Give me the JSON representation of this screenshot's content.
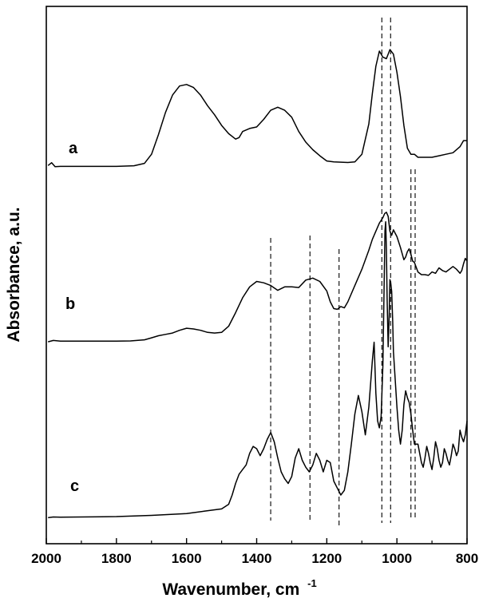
{
  "chart_data": {
    "type": "line",
    "title": "",
    "xlabel": "Wavenumber, cm",
    "xlabel_superscript": "-1",
    "ylabel": "Absorbance, a.u.",
    "xlim": [
      2000,
      800
    ],
    "x_reversed": true,
    "x_ticks": [
      "2000",
      "1800",
      "1600",
      "1400",
      "1200",
      "1000",
      "800"
    ],
    "y_ticks_shown": false,
    "grid": false,
    "series": [
      {
        "name": "a",
        "x": [
          1995,
          1985,
          1975,
          1960,
          1900,
          1800,
          1750,
          1720,
          1700,
          1680,
          1660,
          1640,
          1620,
          1600,
          1580,
          1560,
          1540,
          1520,
          1500,
          1480,
          1460,
          1450,
          1440,
          1420,
          1400,
          1380,
          1360,
          1340,
          1320,
          1300,
          1280,
          1260,
          1240,
          1220,
          1200,
          1180,
          1160,
          1140,
          1120,
          1100,
          1080,
          1070,
          1060,
          1050,
          1040,
          1030,
          1020,
          1010,
          1000,
          990,
          980,
          970,
          960,
          950,
          940,
          920,
          900,
          880,
          860,
          840,
          820,
          810,
          800
        ],
        "y": [
          0.23,
          0.32,
          0.19,
          0.2,
          0.2,
          0.2,
          0.22,
          0.3,
          0.6,
          1.25,
          1.98,
          2.55,
          2.85,
          2.9,
          2.8,
          2.55,
          2.2,
          1.9,
          1.55,
          1.28,
          1.1,
          1.15,
          1.35,
          1.45,
          1.5,
          1.75,
          2.05,
          2.15,
          2.05,
          1.82,
          1.35,
          1.0,
          0.75,
          0.55,
          0.38,
          0.35,
          0.34,
          0.33,
          0.35,
          0.6,
          1.6,
          2.6,
          3.5,
          4.0,
          3.8,
          3.75,
          4.05,
          3.9,
          3.3,
          2.5,
          1.55,
          0.8,
          0.6,
          0.6,
          0.5,
          0.5,
          0.5,
          0.55,
          0.6,
          0.65,
          0.85,
          1.05,
          1.05
        ]
      },
      {
        "name": "b",
        "x": [
          1995,
          1980,
          1960,
          1900,
          1800,
          1760,
          1720,
          1700,
          1680,
          1660,
          1640,
          1620,
          1600,
          1580,
          1560,
          1540,
          1520,
          1500,
          1480,
          1460,
          1440,
          1420,
          1400,
          1380,
          1360,
          1340,
          1320,
          1300,
          1280,
          1260,
          1240,
          1220,
          1200,
          1190,
          1180,
          1170,
          1160,
          1150,
          1140,
          1120,
          1100,
          1080,
          1070,
          1060,
          1050,
          1040,
          1035,
          1030,
          1025,
          1020,
          1015,
          1010,
          1000,
          990,
          980,
          975,
          970,
          965,
          960,
          955,
          950,
          940,
          930,
          920,
          910,
          900,
          890,
          880,
          870,
          860,
          850,
          840,
          830,
          820,
          815,
          810,
          805,
          800
        ],
        "y": [
          0.05,
          0.15,
          0.1,
          0.1,
          0.1,
          0.12,
          0.2,
          0.35,
          0.5,
          0.6,
          0.7,
          0.9,
          1.05,
          1.0,
          0.9,
          0.75,
          0.7,
          0.75,
          1.2,
          2.2,
          3.3,
          4.1,
          4.5,
          4.4,
          4.2,
          3.85,
          4.1,
          4.1,
          4.05,
          4.6,
          4.75,
          4.5,
          3.8,
          3.0,
          2.5,
          2.45,
          2.65,
          2.55,
          3.0,
          4.2,
          5.4,
          6.8,
          7.6,
          8.2,
          8.8,
          9.2,
          9.5,
          9.6,
          9.3,
          8.2,
          7.9,
          8.3,
          7.8,
          7.0,
          6.1,
          6.3,
          6.7,
          6.9,
          6.5,
          6.0,
          5.9,
          5.2,
          5.0,
          5.0,
          4.95,
          5.2,
          5.1,
          5.5,
          5.3,
          5.2,
          5.4,
          5.6,
          5.4,
          5.1,
          5.3,
          5.8,
          6.2,
          6.0
        ]
      },
      {
        "name": "c",
        "x": [
          1995,
          1980,
          1960,
          1900,
          1800,
          1700,
          1600,
          1550,
          1500,
          1480,
          1470,
          1460,
          1450,
          1440,
          1430,
          1420,
          1410,
          1400,
          1390,
          1380,
          1370,
          1360,
          1350,
          1340,
          1330,
          1320,
          1310,
          1300,
          1290,
          1280,
          1270,
          1260,
          1250,
          1240,
          1230,
          1220,
          1210,
          1200,
          1190,
          1180,
          1170,
          1160,
          1150,
          1140,
          1130,
          1120,
          1110,
          1100,
          1090,
          1080,
          1070,
          1065,
          1060,
          1055,
          1050,
          1045,
          1040,
          1038,
          1036,
          1034,
          1032,
          1030,
          1028,
          1025,
          1022,
          1020,
          1018,
          1015,
          1012,
          1010,
          1005,
          1000,
          995,
          990,
          985,
          980,
          975,
          970,
          965,
          960,
          955,
          950,
          945,
          940,
          935,
          930,
          925,
          920,
          915,
          910,
          905,
          900,
          895,
          890,
          885,
          880,
          875,
          870,
          865,
          860,
          855,
          850,
          845,
          840,
          835,
          830,
          825,
          820,
          815,
          810,
          805,
          800
        ],
        "y": [
          0.02,
          0.05,
          0.04,
          0.05,
          0.07,
          0.12,
          0.2,
          0.3,
          0.4,
          0.6,
          1.0,
          1.5,
          1.9,
          2.1,
          2.3,
          2.8,
          3.1,
          3.0,
          2.7,
          3.0,
          3.4,
          3.7,
          3.3,
          2.6,
          2.0,
          1.7,
          1.5,
          1.8,
          2.6,
          3.0,
          2.5,
          2.2,
          2.0,
          2.3,
          2.8,
          2.5,
          2.0,
          2.5,
          2.4,
          1.6,
          1.3,
          1.0,
          1.2,
          2.0,
          3.2,
          4.5,
          5.3,
          4.6,
          3.6,
          4.8,
          6.8,
          7.6,
          5.4,
          4.2,
          3.9,
          4.4,
          6.6,
          8.6,
          10.6,
          12.4,
          12.8,
          11.6,
          9.5,
          7.4,
          8.8,
          10.3,
          10.2,
          9.8,
          8.5,
          7.2,
          6.0,
          4.8,
          3.8,
          3.2,
          3.8,
          4.9,
          5.5,
          5.2,
          5.0,
          4.5,
          3.8,
          3.2,
          3.2,
          3.2,
          2.8,
          2.4,
          2.2,
          2.6,
          3.1,
          2.8,
          2.4,
          2.1,
          2.6,
          3.3,
          3.0,
          2.5,
          2.2,
          2.4,
          3.0,
          2.8,
          2.5,
          2.3,
          2.7,
          3.2,
          3.0,
          2.7,
          2.9,
          3.8,
          3.5,
          3.3,
          3.6,
          4.2
        ]
      }
    ],
    "reference_lines_x": [
      1360,
      1248,
      1165,
      1043,
      1018,
      960,
      948
    ]
  }
}
